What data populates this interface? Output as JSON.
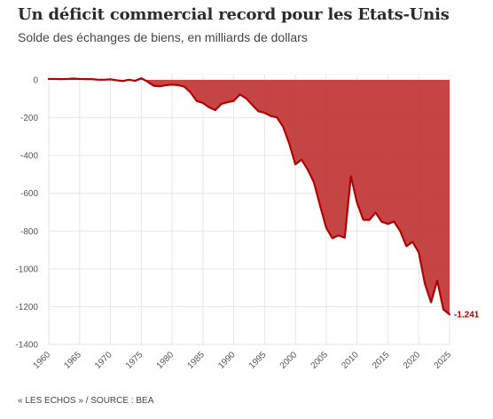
{
  "header": {
    "title": "Un déficit commercial record pour les Etats-Unis",
    "subtitle": "Solde des échanges de biens, en milliards de dollars"
  },
  "footer": {
    "source": "« LES ECHOS » / SOURCE : BEA"
  },
  "colors": {
    "line": "#b30000",
    "area": "#c23b3b",
    "grid": "#e6e6e6"
  },
  "chart_data": {
    "type": "area",
    "title": "Un déficit commercial record pour les Etats-Unis",
    "subtitle": "Solde des échanges de biens, en milliards de dollars",
    "xlabel": "",
    "ylabel": "",
    "ylim": [
      -1400,
      0
    ],
    "xlim": [
      1960,
      2025
    ],
    "grid": true,
    "y_ticks": [
      0,
      -200,
      -400,
      -600,
      -800,
      -1000,
      -1200,
      -1400
    ],
    "y_tick_labels": [
      "0",
      "-200",
      "-400",
      "-600",
      "-800",
      "-1000",
      "-1200",
      "-1400"
    ],
    "x_ticks": [
      1960,
      1965,
      1970,
      1975,
      1980,
      1985,
      1990,
      1995,
      2000,
      2005,
      2010,
      2015,
      2020,
      2025
    ],
    "x_tick_labels": [
      "1960",
      "1965",
      "1970",
      "1975",
      "1980",
      "1985",
      "1990",
      "1995",
      "2000",
      "2005",
      "2010",
      "2015",
      "2020",
      "2025"
    ],
    "end_label": "-1.241",
    "series": [
      {
        "x": [
          1960,
          1961,
          1962,
          1963,
          1964,
          1965,
          1966,
          1967,
          1968,
          1969,
          1970,
          1971,
          1972,
          1973,
          1974,
          1975,
          1976,
          1977,
          1978,
          1979,
          1980,
          1981,
          1982,
          1983,
          1984,
          1985,
          1986,
          1987,
          1988,
          1989,
          1990,
          1991,
          1992,
          1993,
          1994,
          1995,
          1996,
          1997,
          1998,
          1999,
          2000,
          2001,
          2002,
          2003,
          2004,
          2005,
          2006,
          2007,
          2008,
          2009,
          2010,
          2011,
          2012,
          2013,
          2014,
          2015,
          2016,
          2017,
          2018,
          2019,
          2020,
          2021,
          2022,
          2023,
          2024,
          2025
        ],
        "values": [
          5,
          5,
          4,
          5,
          7,
          5,
          4,
          4,
          1,
          1,
          3,
          -2,
          -6,
          1,
          -5,
          9,
          -9,
          -31,
          -34,
          -28,
          -25,
          -28,
          -36,
          -67,
          -112,
          -122,
          -145,
          -160,
          -127,
          -118,
          -111,
          -77,
          -97,
          -132,
          -166,
          -174,
          -191,
          -198,
          -248,
          -337,
          -447,
          -422,
          -475,
          -542,
          -665,
          -783,
          -838,
          -823,
          -835,
          -510,
          -650,
          -740,
          -741,
          -702,
          -751,
          -762,
          -750,
          -800,
          -880,
          -857,
          -913,
          -1079,
          -1177,
          -1062,
          -1215,
          -1241
        ]
      }
    ]
  }
}
